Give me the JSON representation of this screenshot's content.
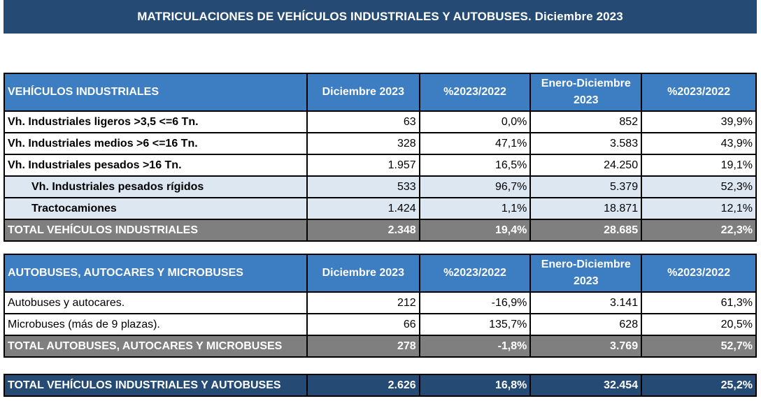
{
  "title": "MATRICULACIONES DE VEHÍCULOS INDUSTRIALES Y AUTOBUSES.  Diciembre 2023",
  "industriales": {
    "header": [
      "VEHÍCULOS INDUSTRIALES",
      "Diciembre 2023",
      "%2023/2022",
      "Enero-Diciembre 2023",
      "%2023/2022"
    ],
    "rows": [
      {
        "label": "Vh. Industriales ligeros >3,5 <=6 Tn.",
        "dic": "63",
        "pct1": "0,0%",
        "ene": "852",
        "pct2": "39,9%"
      },
      {
        "label": "Vh. Industriales medios >6  <=16 Tn.",
        "dic": "328",
        "pct1": "47,1%",
        "ene": "3.583",
        "pct2": "43,9%"
      },
      {
        "label": "Vh. Industriales  pesados >16 Tn.",
        "dic": "1.957",
        "pct1": "16,5%",
        "ene": "24.250",
        "pct2": "19,1%"
      },
      {
        "label": "Vh. Industriales pesados rígidos",
        "dic": "533",
        "pct1": "96,7%",
        "ene": "5.379",
        "pct2": "52,3%"
      },
      {
        "label": "Tractocamiones",
        "dic": "1.424",
        "pct1": "1,1%",
        "ene": "18.871",
        "pct2": "12,1%"
      }
    ],
    "total": {
      "label": "TOTAL VEHÍCULOS INDUSTRIALES",
      "dic": "2.348",
      "pct1": "19,4%",
      "ene": "28.685",
      "pct2": "22,3%"
    }
  },
  "autobuses": {
    "header": [
      "AUTOBUSES, AUTOCARES Y MICROBUSES",
      "Diciembre 2023",
      "%2023/2022",
      "Enero-Diciembre 2023",
      "%2023/2022"
    ],
    "rows": [
      {
        "label": "Autobuses y autocares.",
        "dic": "212",
        "pct1": "-16,9%",
        "ene": "3.141",
        "pct2": "61,3%"
      },
      {
        "label": "Microbuses (más de 9 plazas).",
        "dic": "66",
        "pct1": "135,7%",
        "ene": "628",
        "pct2": "20,5%"
      }
    ],
    "total": {
      "label": "TOTAL AUTOBUSES, AUTOCARES Y MICROBUSES",
      "dic": "278",
      "pct1": "-1,8%",
      "ene": "3.769",
      "pct2": "52,7%"
    }
  },
  "grand_total": {
    "label": "TOTAL VEHÍCULOS INDUSTRIALES Y AUTOBUSES",
    "dic": "2.626",
    "pct1": "16,8%",
    "ene": "32.454",
    "pct2": "25,2%"
  }
}
